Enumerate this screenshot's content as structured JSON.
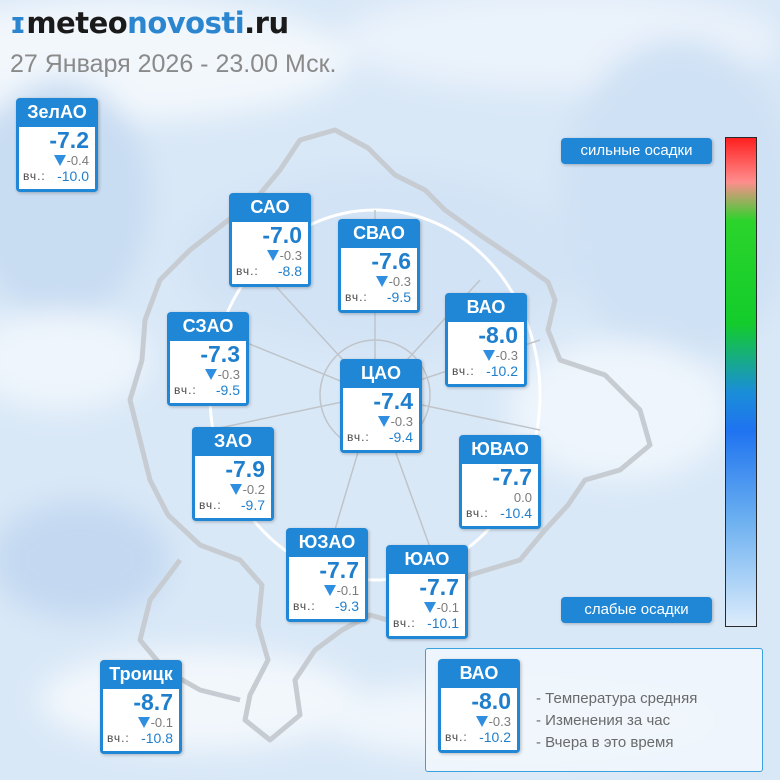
{
  "header": {
    "logo_mark": "ɪ",
    "logo_part1": "meteo",
    "logo_part2": "novosti",
    "logo_part3": ".ru",
    "datetime": "27 Января 2026 - 23.00 Мск."
  },
  "precip_scale": {
    "top_label": "сильные осадки",
    "bottom_label": "слабые осадки"
  },
  "yesterday_label": "вч.:",
  "districts": [
    {
      "name": "ЗелАО",
      "temp": "-7.2",
      "change": "-0.4",
      "change_dir": "down",
      "yesterday": "-10.0"
    },
    {
      "name": "САО",
      "temp": "-7.0",
      "change": "-0.3",
      "change_dir": "down",
      "yesterday": "-8.8"
    },
    {
      "name": "СВАО",
      "temp": "-7.6",
      "change": "-0.3",
      "change_dir": "down",
      "yesterday": "-9.5"
    },
    {
      "name": "ВАО",
      "temp": "-8.0",
      "change": "-0.3",
      "change_dir": "down",
      "yesterday": "-10.2"
    },
    {
      "name": "СЗАО",
      "temp": "-7.3",
      "change": "-0.3",
      "change_dir": "down",
      "yesterday": "-9.5"
    },
    {
      "name": "ЦАО",
      "temp": "-7.4",
      "change": "-0.3",
      "change_dir": "down",
      "yesterday": "-9.4"
    },
    {
      "name": "ЗАО",
      "temp": "-7.9",
      "change": "-0.2",
      "change_dir": "down",
      "yesterday": "-9.7"
    },
    {
      "name": "ЮВАО",
      "temp": "-7.7",
      "change": "0.0",
      "change_dir": "none",
      "yesterday": "-10.4"
    },
    {
      "name": "ЮЗАО",
      "temp": "-7.7",
      "change": "-0.1",
      "change_dir": "down",
      "yesterday": "-9.3"
    },
    {
      "name": "ЮАО",
      "temp": "-7.7",
      "change": "-0.1",
      "change_dir": "down",
      "yesterday": "-10.1"
    },
    {
      "name": "Троицк",
      "temp": "-8.7",
      "change": "-0.1",
      "change_dir": "down",
      "yesterday": "-10.8"
    }
  ],
  "legend": {
    "example": {
      "name": "ВАО",
      "temp": "-8.0",
      "change": "-0.3",
      "change_dir": "down",
      "yesterday": "-10.2"
    },
    "line1": "- Температура средняя",
    "line2": "- Изменения за час",
    "line3": "- Вчера в это время"
  },
  "colors": {
    "accent": "#1f87d6",
    "temp_text": "#1f7fcc",
    "map_lines": "#c6ccd2"
  }
}
